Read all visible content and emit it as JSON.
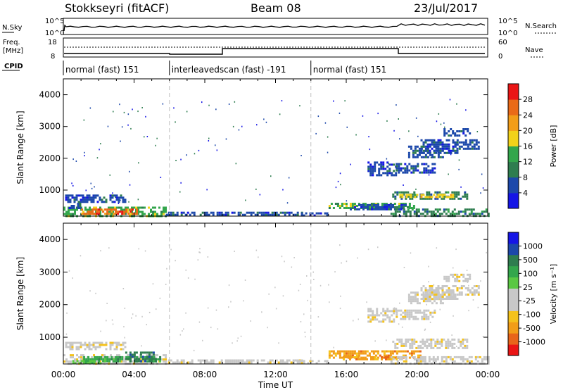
{
  "header": {
    "station": "Stokkseyri (fitACF)",
    "beam": "Beam 08",
    "date": "23/Jul/2017"
  },
  "noise_panel": {
    "left_label": "N.Sky",
    "right_label": "N.Search",
    "left_top": "10^5",
    "left_bottom": "10^0",
    "right_top": "10^5",
    "right_bottom": "10^0"
  },
  "freq_panel": {
    "left_label": "Freq.",
    "left_unit": "[MHz]",
    "left_top": "18",
    "left_bottom": "8",
    "right_label": "Nave",
    "right_top": "60",
    "right_bottom": "0"
  },
  "cpid": {
    "label": "CPID",
    "segments": [
      {
        "text": "normal (fast) 151",
        "start_h": 0,
        "end_h": 6
      },
      {
        "text": "interleavedscan (fast) -191",
        "start_h": 6,
        "end_h": 14
      },
      {
        "text": "normal (fast) 151",
        "start_h": 14,
        "end_h": 24
      }
    ]
  },
  "colors": {
    "power": [
      "#1515e6",
      "#1c48aa",
      "#2e7d4f",
      "#33a64c",
      "#f2d21a",
      "#f29d18",
      "#ea6a17",
      "#ea1515"
    ],
    "velocity": [
      "#ea1515",
      "#e8641a",
      "#f29d18",
      "#f4c21c",
      "#c8c8c8",
      "#c8c8c8",
      "#5ac843",
      "#33a64c",
      "#2e7d4f",
      "#1c48aa",
      "#1515e6"
    ]
  },
  "chart_data": [
    {
      "type": "heatmap",
      "ylabel": "Slant Range [km]",
      "colorbar_label": "Power [dB]",
      "colorbar_ticks": [
        "4",
        "8",
        "12",
        "16",
        "20",
        "24",
        "28"
      ],
      "ylim": [
        180,
        4500
      ],
      "yticks": [
        "1000",
        "2000",
        "3000",
        "4000"
      ],
      "ytick_values": [
        1000,
        2000,
        3000,
        4000
      ],
      "xlim_hours": [
        0,
        24
      ],
      "regions": [
        {
          "t0": 0.0,
          "t1": 5.8,
          "r0": 200,
          "r1": 480,
          "level": 3
        },
        {
          "t0": 1.0,
          "t1": 4.2,
          "r0": 250,
          "r1": 420,
          "level": 6
        },
        {
          "t0": 0.1,
          "t1": 3.5,
          "r0": 640,
          "r1": 860,
          "level": 1
        },
        {
          "t0": 0.3,
          "t1": 1.0,
          "r0": 420,
          "r1": 600,
          "level": 1
        },
        {
          "t0": 5.8,
          "t1": 13.5,
          "r0": 200,
          "r1": 320,
          "level": 1
        },
        {
          "t0": 13.2,
          "t1": 15.0,
          "r0": 200,
          "r1": 300,
          "level": 1
        },
        {
          "t0": 15.0,
          "t1": 19.8,
          "r0": 420,
          "r1": 600,
          "level": 3
        },
        {
          "t0": 16.2,
          "t1": 19.5,
          "r0": 400,
          "r1": 560,
          "level": 1
        },
        {
          "t0": 18.5,
          "t1": 24.0,
          "r0": 200,
          "r1": 420,
          "level": 2
        },
        {
          "t0": 18.6,
          "t1": 22.8,
          "r0": 700,
          "r1": 960,
          "level": 2
        },
        {
          "t0": 19.0,
          "t1": 22.0,
          "r0": 750,
          "r1": 880,
          "level": 4
        },
        {
          "t0": 17.2,
          "t1": 18.8,
          "r0": 1500,
          "r1": 1900,
          "level": 1
        },
        {
          "t0": 18.8,
          "t1": 21.0,
          "r0": 1550,
          "r1": 1850,
          "level": 1
        },
        {
          "t0": 19.5,
          "t1": 21.5,
          "r0": 2050,
          "r1": 2400,
          "level": 1
        },
        {
          "t0": 20.2,
          "t1": 22.3,
          "r0": 2200,
          "r1": 2600,
          "level": 1
        },
        {
          "t0": 21.5,
          "t1": 23.0,
          "r0": 2700,
          "r1": 2950,
          "level": 1
        },
        {
          "t0": 22.0,
          "t1": 23.5,
          "r0": 2300,
          "r1": 2600,
          "level": 1
        }
      ]
    },
    {
      "type": "heatmap",
      "ylabel": "Slant Range [km]",
      "colorbar_label": "Velocity [m s⁻¹]",
      "colorbar_ticks": [
        "-1000",
        "-500",
        "-100",
        "-25",
        "25",
        "100",
        "500",
        "1000"
      ],
      "ylim": [
        180,
        4500
      ],
      "yticks": [
        "1000",
        "2000",
        "3000",
        "4000"
      ],
      "ytick_values": [
        1000,
        2000,
        3000,
        4000
      ],
      "xlim_hours": [
        0,
        24
      ],
      "xticks": [
        "00:00",
        "04:00",
        "08:00",
        "12:00",
        "16:00",
        "20:00",
        "00:00"
      ],
      "xlabel": "Time UT",
      "regions": [
        {
          "t0": 0.0,
          "t1": 5.8,
          "r0": 200,
          "r1": 480,
          "level": 4
        },
        {
          "t0": 0.1,
          "t1": 3.5,
          "r0": 640,
          "r1": 860,
          "level": 4
        },
        {
          "t0": 1.0,
          "t1": 5.5,
          "r0": 250,
          "r1": 420,
          "level": 7
        },
        {
          "t0": 3.5,
          "t1": 5.2,
          "r0": 300,
          "r1": 560,
          "level": 8
        },
        {
          "t0": 0.5,
          "t1": 2.5,
          "r0": 200,
          "r1": 300,
          "level": 6
        },
        {
          "t0": 5.8,
          "t1": 13.5,
          "r0": 200,
          "r1": 320,
          "level": 4
        },
        {
          "t0": 13.2,
          "t1": 15.0,
          "r0": 200,
          "r1": 300,
          "level": 4
        },
        {
          "t0": 15.0,
          "t1": 20.2,
          "r0": 400,
          "r1": 600,
          "level": 2
        },
        {
          "t0": 15.8,
          "t1": 18.8,
          "r0": 300,
          "r1": 420,
          "level": 2
        },
        {
          "t0": 18.5,
          "t1": 24.0,
          "r0": 200,
          "r1": 420,
          "level": 4
        },
        {
          "t0": 18.6,
          "t1": 22.8,
          "r0": 700,
          "r1": 960,
          "level": 4
        },
        {
          "t0": 17.2,
          "t1": 18.8,
          "r0": 1500,
          "r1": 1900,
          "level": 4
        },
        {
          "t0": 18.8,
          "t1": 21.0,
          "r0": 1550,
          "r1": 1850,
          "level": 4
        },
        {
          "t0": 19.5,
          "t1": 21.5,
          "r0": 2050,
          "r1": 2400,
          "level": 4
        },
        {
          "t0": 20.2,
          "t1": 22.3,
          "r0": 2200,
          "r1": 2600,
          "level": 4
        },
        {
          "t0": 21.5,
          "t1": 23.0,
          "r0": 2700,
          "r1": 2950,
          "level": 4
        },
        {
          "t0": 22.0,
          "t1": 23.5,
          "r0": 2300,
          "r1": 2600,
          "level": 4
        }
      ]
    }
  ]
}
